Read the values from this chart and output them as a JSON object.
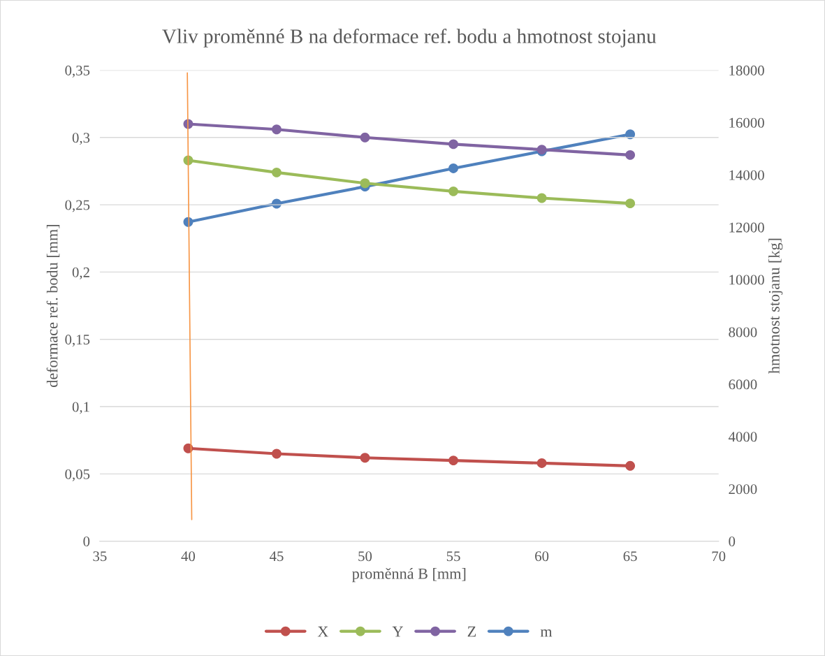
{
  "chart_data": {
    "type": "line",
    "title": "Vliv proměnné B na deformace ref. bodu a hmotnost stojanu",
    "xlabel": "proměnná B [mm]",
    "ylabel": "deformace ref. bodu [mm]",
    "y2label": "hmotnost stojanu [kg]",
    "x": [
      40,
      45,
      50,
      55,
      60,
      65
    ],
    "series": [
      {
        "name": "X",
        "color": "#c0504d",
        "values": [
          0.069,
          0.065,
          0.062,
          0.06,
          0.058,
          0.056
        ]
      },
      {
        "name": "Y",
        "color": "#9bbb59",
        "values": [
          0.283,
          0.274,
          0.266,
          0.26,
          0.255,
          0.251
        ]
      },
      {
        "name": "Z",
        "color": "#8064a2",
        "values": [
          0.31,
          0.306,
          0.3,
          0.295,
          0.291,
          0.287
        ]
      },
      {
        "name": "m",
        "color": "#4f81bd",
        "axis": "y2",
        "values": [
          12200,
          12900,
          13550,
          14250,
          14900,
          15550
        ]
      },
      {
        "color": "#f79646",
        "x": [
          39.95,
          40.2
        ],
        "values": [
          0.348,
          0.016
        ],
        "marker": "none"
      }
    ],
    "xlim": [
      35,
      70
    ],
    "xticks": [
      35,
      40,
      45,
      50,
      55,
      60,
      65,
      70
    ],
    "ylim": [
      0,
      0.35
    ],
    "yticks": [
      {
        "value": 0,
        "label": "0"
      },
      {
        "value": 0.05,
        "label": "0,05"
      },
      {
        "value": 0.1,
        "label": "0,1"
      },
      {
        "value": 0.15,
        "label": "0,15"
      },
      {
        "value": 0.2,
        "label": "0,2"
      },
      {
        "value": 0.25,
        "label": "0,25"
      },
      {
        "value": 0.3,
        "label": "0,3"
      },
      {
        "value": 0.35,
        "label": "0,35"
      }
    ],
    "y2lim": [
      0,
      18000
    ],
    "y2ticks": [
      0,
      2000,
      4000,
      6000,
      8000,
      10000,
      12000,
      14000,
      16000,
      18000
    ],
    "grid": "y",
    "legend": "bottom",
    "marker": "circle",
    "line_style": "solid"
  }
}
